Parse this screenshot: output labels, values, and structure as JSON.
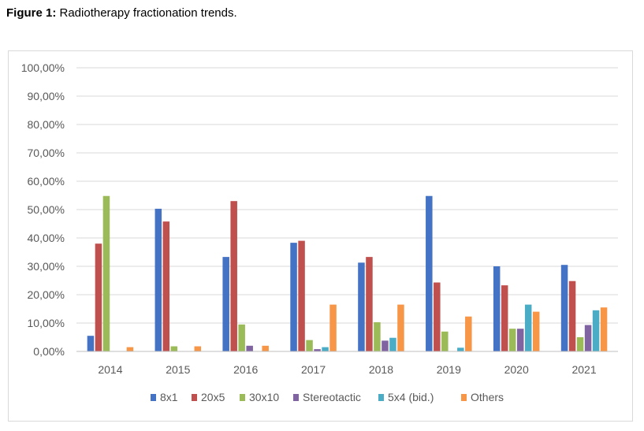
{
  "caption": {
    "lead": "Figure 1:",
    "text": " Radiotherapy fractionation trends."
  },
  "colors": {
    "8x1": "#4472c4",
    "20x5": "#c0504d",
    "30x10": "#9bbb59",
    "Stereotactic": "#8064a2",
    "5x4 (bid.)": "#4bacc6",
    "Others": "#f79646"
  },
  "chart_data": {
    "type": "bar",
    "title": "Radiotherapy fractionation trends.",
    "xlabel": "",
    "ylabel": "",
    "ylim": [
      0,
      100
    ],
    "yticks": [
      "0,00%",
      "10,00%",
      "20,00%",
      "30,00%",
      "40,00%",
      "50,00%",
      "60,00%",
      "70,00%",
      "80,00%",
      "90,00%",
      "100,00%"
    ],
    "grid": true,
    "legend_position": "bottom",
    "categories": [
      "2014",
      "2015",
      "2016",
      "2017",
      "2018",
      "2019",
      "2020",
      "2021"
    ],
    "series": [
      {
        "name": "8x1",
        "values": [
          5.5,
          50.3,
          33.3,
          38.3,
          31.3,
          54.8,
          30.0,
          30.5
        ]
      },
      {
        "name": "20x5",
        "values": [
          38.0,
          45.8,
          53.0,
          39.0,
          33.3,
          24.3,
          23.3,
          24.8
        ]
      },
      {
        "name": "30x10",
        "values": [
          54.8,
          1.8,
          9.5,
          4.0,
          10.3,
          7.0,
          8.0,
          5.0
        ]
      },
      {
        "name": "Stereotactic",
        "values": [
          0,
          0,
          2.0,
          0.8,
          3.8,
          0,
          8.0,
          9.3
        ]
      },
      {
        "name": "5x4 (bid.)",
        "values": [
          0,
          0,
          0,
          1.5,
          4.8,
          1.3,
          16.5,
          14.5
        ]
      },
      {
        "name": "Others",
        "values": [
          1.5,
          1.8,
          2.0,
          16.5,
          16.5,
          12.3,
          14.0,
          15.5
        ]
      }
    ]
  }
}
